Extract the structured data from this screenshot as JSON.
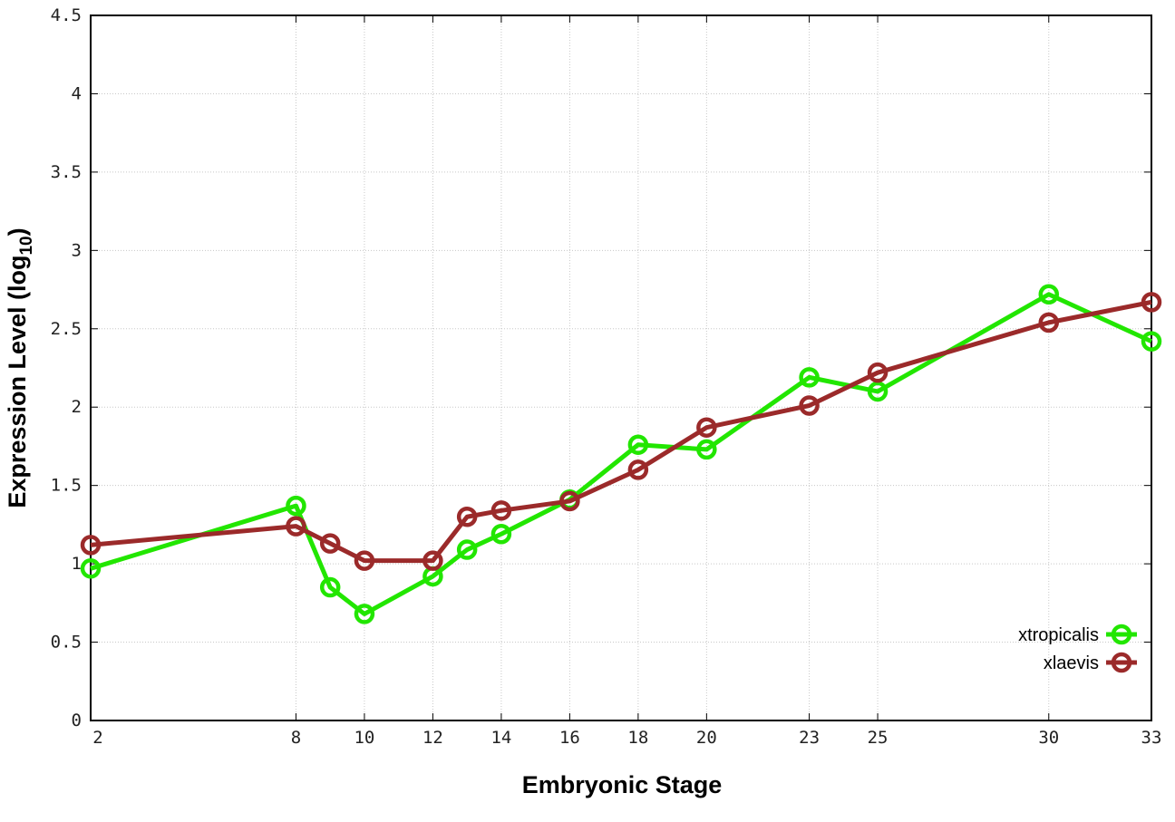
{
  "chart_data": {
    "type": "line",
    "xlabel": "Embryonic Stage",
    "ylabel": "Expression Level (log",
    "ylabel_sub": "10",
    "ylabel_end": ")",
    "x": [
      2,
      8,
      9,
      10,
      12,
      13,
      14,
      16,
      18,
      20,
      23,
      25,
      30,
      33
    ],
    "xticks": [
      2,
      8,
      10,
      12,
      14,
      16,
      18,
      20,
      23,
      25,
      30,
      33
    ],
    "xlim": [
      2,
      33
    ],
    "yticks": [
      "0",
      "0.5",
      "1",
      "1.5",
      "2",
      "2.5",
      "3",
      "3.5",
      "4",
      "4.5"
    ],
    "ylim": [
      0,
      4.5
    ],
    "grid": true,
    "legend_position": "bottom-right",
    "series": [
      {
        "name": "xtropicalis",
        "color": "#22e600",
        "values": [
          0.97,
          1.37,
          0.85,
          0.68,
          0.92,
          1.09,
          1.19,
          1.41,
          1.76,
          1.73,
          2.19,
          2.1,
          2.72,
          2.42
        ]
      },
      {
        "name": "xlaevis",
        "color": "#9b2a2a",
        "values": [
          1.12,
          1.24,
          1.13,
          1.02,
          1.02,
          1.3,
          1.34,
          1.4,
          1.6,
          1.87,
          2.01,
          2.22,
          2.54,
          2.67
        ]
      }
    ]
  }
}
